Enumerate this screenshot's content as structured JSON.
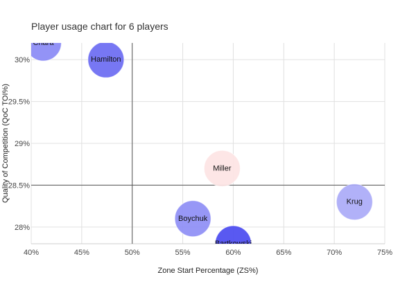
{
  "chart_data": {
    "type": "scatter",
    "title": "Player usage chart for 6 players",
    "xlabel": "Zone Start Percentage (ZS%)",
    "ylabel": "Quality of Competition (QoC TOI%)",
    "xlim": [
      40,
      75
    ],
    "ylim": [
      27.8,
      30.2
    ],
    "x_ticks": [
      40,
      45,
      50,
      55,
      60,
      65,
      70,
      75
    ],
    "y_ticks": [
      28,
      28.5,
      29,
      29.5,
      30
    ],
    "x_tick_labels": [
      "40%",
      "45%",
      "50%",
      "55%",
      "60%",
      "65%",
      "70%",
      "75%"
    ],
    "y_tick_labels": [
      "28%",
      "28.5%",
      "29%",
      "29.5%",
      "30%"
    ],
    "reference_lines": {
      "x": 50,
      "y": 28.5
    },
    "grid": true,
    "points": [
      {
        "label": "Chara",
        "x": 41.2,
        "y": 30.2,
        "color": "#8a8af5"
      },
      {
        "label": "Hamilton",
        "x": 47.4,
        "y": 30.0,
        "color": "#6b6bf2"
      },
      {
        "label": "Miller",
        "x": 58.9,
        "y": 28.7,
        "color": "#fde4e4"
      },
      {
        "label": "Krug",
        "x": 72.0,
        "y": 28.3,
        "color": "#aaaaf7"
      },
      {
        "label": "Boychuk",
        "x": 56.0,
        "y": 28.1,
        "color": "#8e8ef5"
      },
      {
        "label": "Bartkowski",
        "x": 60.0,
        "y": 27.8,
        "color": "#4b4bf0"
      }
    ]
  }
}
